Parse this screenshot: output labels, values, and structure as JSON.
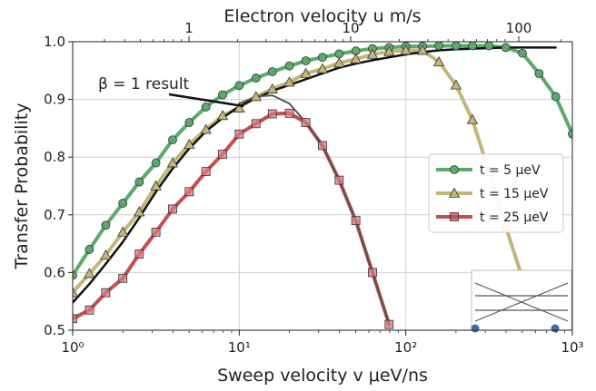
{
  "chart_data": {
    "type": "line",
    "xlabel": "Sweep velocity $v$ $\\mu$eV/ns",
    "ylabel": "Transfer Probability",
    "top_xlabel": "Electron velocity $u$ m/s",
    "xscale": "log",
    "xlim": [
      1,
      1000
    ],
    "ylim": [
      0.5,
      1.0
    ],
    "x_tick_labels": [
      "10⁰",
      "10¹",
      "10²",
      "10³"
    ],
    "y_tick_labels": [
      "0.5",
      "0.6",
      "0.7",
      "0.8",
      "0.9",
      "1.0"
    ],
    "top_tick_labels": [
      "1",
      "10",
      "100"
    ],
    "grid": true,
    "legend_position": "right",
    "annotation": "β = 1 result",
    "series": [
      {
        "name": "t = 5 μeV",
        "color": "#5aab6b",
        "marker": "circle",
        "x": [
          1.0,
          1.26,
          1.58,
          2.0,
          2.51,
          3.16,
          3.98,
          5.01,
          6.31,
          7.94,
          10.0,
          12.6,
          15.8,
          20.0,
          25.1,
          31.6,
          39.8,
          50.1,
          63.1,
          79.4,
          100,
          126,
          158,
          200,
          251,
          316,
          398,
          501,
          631,
          794,
          1000
        ],
        "y": [
          0.595,
          0.64,
          0.682,
          0.72,
          0.757,
          0.79,
          0.83,
          0.86,
          0.887,
          0.908,
          0.924,
          0.937,
          0.948,
          0.958,
          0.967,
          0.973,
          0.979,
          0.984,
          0.988,
          0.99,
          0.992,
          0.992,
          0.993,
          0.993,
          0.993,
          0.993,
          0.99,
          0.98,
          0.945,
          0.905,
          0.84
        ]
      },
      {
        "name": "t = 15 μeV",
        "color": "#c4b676",
        "marker": "triangle",
        "x": [
          1.0,
          1.26,
          1.58,
          2.0,
          2.51,
          3.16,
          3.98,
          5.01,
          6.31,
          7.94,
          10.0,
          12.6,
          15.8,
          20.0,
          25.1,
          31.6,
          39.8,
          50.1,
          63.1,
          79.4,
          100,
          126,
          158,
          200,
          251,
          316,
          398,
          501,
          631,
          794
        ],
        "y": [
          0.565,
          0.598,
          0.63,
          0.67,
          0.705,
          0.75,
          0.79,
          0.822,
          0.848,
          0.872,
          0.885,
          0.905,
          0.918,
          0.93,
          0.945,
          0.953,
          0.963,
          0.97,
          0.978,
          0.983,
          0.985,
          0.985,
          0.965,
          0.925,
          0.865,
          0.775,
          0.68,
          0.59,
          0.53,
          0.497
        ]
      },
      {
        "name": "t = 25 μeV",
        "color": "#c44e52",
        "marker": "square",
        "x": [
          1.0,
          1.26,
          1.58,
          2.0,
          2.51,
          3.16,
          3.98,
          5.01,
          6.31,
          7.94,
          10.0,
          12.6,
          15.8,
          20.0,
          25.1,
          31.6,
          39.8,
          50.1,
          63.1,
          79.4
        ],
        "y": [
          0.52,
          0.535,
          0.565,
          0.59,
          0.632,
          0.67,
          0.71,
          0.74,
          0.775,
          0.805,
          0.84,
          0.858,
          0.875,
          0.876,
          0.86,
          0.82,
          0.76,
          0.69,
          0.6,
          0.51
        ]
      },
      {
        "name": "β = 1 result",
        "color": "#111111",
        "marker": "none",
        "x": [
          1.0,
          1.26,
          1.58,
          2.0,
          2.51,
          3.16,
          3.98,
          5.01,
          6.31,
          7.94,
          10.0,
          12.6,
          15.8,
          20.0,
          25.1,
          31.6,
          39.8,
          50.1,
          63.1,
          79.4,
          100,
          126,
          158,
          200,
          251,
          316,
          398,
          501,
          631,
          794
        ],
        "y": [
          0.548,
          0.58,
          0.615,
          0.653,
          0.695,
          0.74,
          0.78,
          0.815,
          0.845,
          0.868,
          0.888,
          0.902,
          0.915,
          0.925,
          0.935,
          0.945,
          0.955,
          0.962,
          0.968,
          0.973,
          0.978,
          0.982,
          0.985,
          0.987,
          0.988,
          0.989,
          0.99,
          0.99,
          0.99,
          0.99
        ]
      },
      {
        "name": "",
        "color": "#555555",
        "marker": "none",
        "x": [
          10.0,
          12.6,
          15.8,
          20.0,
          25.1,
          31.6,
          39.8,
          50.1,
          63.1,
          79.4
        ],
        "y": [
          0.893,
          0.905,
          0.907,
          0.893,
          0.86,
          0.82,
          0.76,
          0.69,
          0.6,
          0.51
        ]
      }
    ]
  }
}
